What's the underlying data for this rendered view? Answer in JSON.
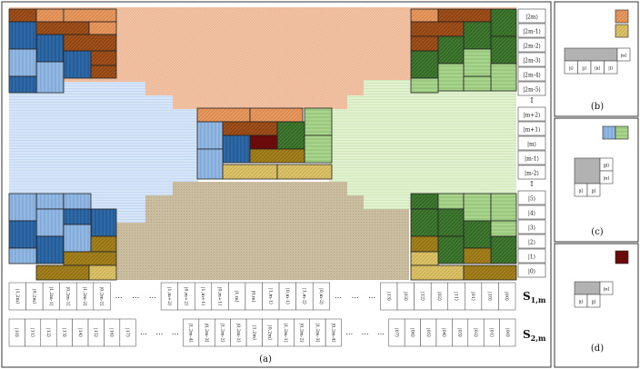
{
  "colors": {
    "peach_bg": "#f2c3a6",
    "peach_block": "#e3955f",
    "light_blue_bg": "#cfe1f5",
    "mid_blue_block": "#8fb5e0",
    "dark_blue_block": "#2f6aa8",
    "light_green_bg": "#dcefc8",
    "mid_green_block": "#a6d18a",
    "dark_green_block": "#3f7a30",
    "khaki_bg": "#c8b99d",
    "gold_block": "#a3811c",
    "light_gold_block": "#dcc36a",
    "brown_block": "#a0501a",
    "dark_red_block": "#6b0a0a",
    "gray_block": "#b2b2b2"
  },
  "main_panel": {
    "caption": "(a)",
    "row_labels": [
      "|2m⟩",
      "|2m-1⟩",
      "|2m-2⟩",
      "|2m-3⟩",
      "|2m-4⟩",
      "|2m-5⟩",
      "↕",
      "|m+2⟩",
      "|m+1⟩",
      "|m⟩",
      "|m-1⟩",
      "|m-2⟩",
      "↕",
      "|5⟩",
      "|4⟩",
      "|3⟩",
      "|2⟩",
      "|1⟩",
      "|0⟩"
    ],
    "s1": {
      "label": "S",
      "sub": "1,m",
      "cells": [
        "|1,2m⟩",
        "|0,2m⟩",
        "|1,2m-1⟩",
        "|0,2m-1⟩",
        "|1,2m-2⟩",
        "|0,2m-2⟩",
        "…",
        "…",
        "…",
        "|1,m+2⟩",
        "|0,m+2⟩",
        "|1,m+1⟩",
        "|0,m+1⟩",
        "|1,m⟩",
        "|0,m⟩",
        "|1,m-1⟩",
        "|0,m-1⟩",
        "|1,m-2⟩",
        "|0,m-2⟩",
        "…",
        "…",
        "…",
        "|13⟩",
        "|03⟩",
        "|12⟩",
        "|02⟩",
        "|11⟩",
        "|01⟩",
        "|10⟩",
        "|00⟩"
      ]
    },
    "s2": {
      "label": "S",
      "sub": "2,m",
      "cells": [
        "|10⟩",
        "|11⟩",
        "|12⟩",
        "|13⟩",
        "|14⟩",
        "|15⟩",
        "|16⟩",
        "|17⟩",
        "…",
        "…",
        "…",
        "|1,2m-4⟩",
        "|0,2m-3⟩",
        "|1,2m-2⟩",
        "|0,2m-1⟩",
        "|1,2m⟩",
        "|0,2m⟩",
        "|1,2m-1⟩",
        "|0,2m-2⟩",
        "|1,2m-3⟩",
        "|0,2m-4⟩",
        "…",
        "…",
        "…",
        "|07⟩",
        "|06⟩",
        "|05⟩",
        "|04⟩",
        "|03⟩",
        "|02⟩",
        "|01⟩",
        "|00⟩"
      ]
    }
  },
  "panel_b": {
    "caption": "(b)",
    "top_label": "|α⟩",
    "bottom_labels": [
      "|i⟩",
      "|j⟩",
      "|k⟩",
      "|l⟩"
    ]
  },
  "panel_c": {
    "caption": "(c)",
    "labels": [
      "|β⟩",
      "|α⟩",
      "|i⟩",
      "|j⟩"
    ]
  },
  "panel_d": {
    "caption": "(d)",
    "top_label": "|α⟩",
    "bottom_labels": [
      "|i⟩",
      "|j⟩"
    ]
  }
}
